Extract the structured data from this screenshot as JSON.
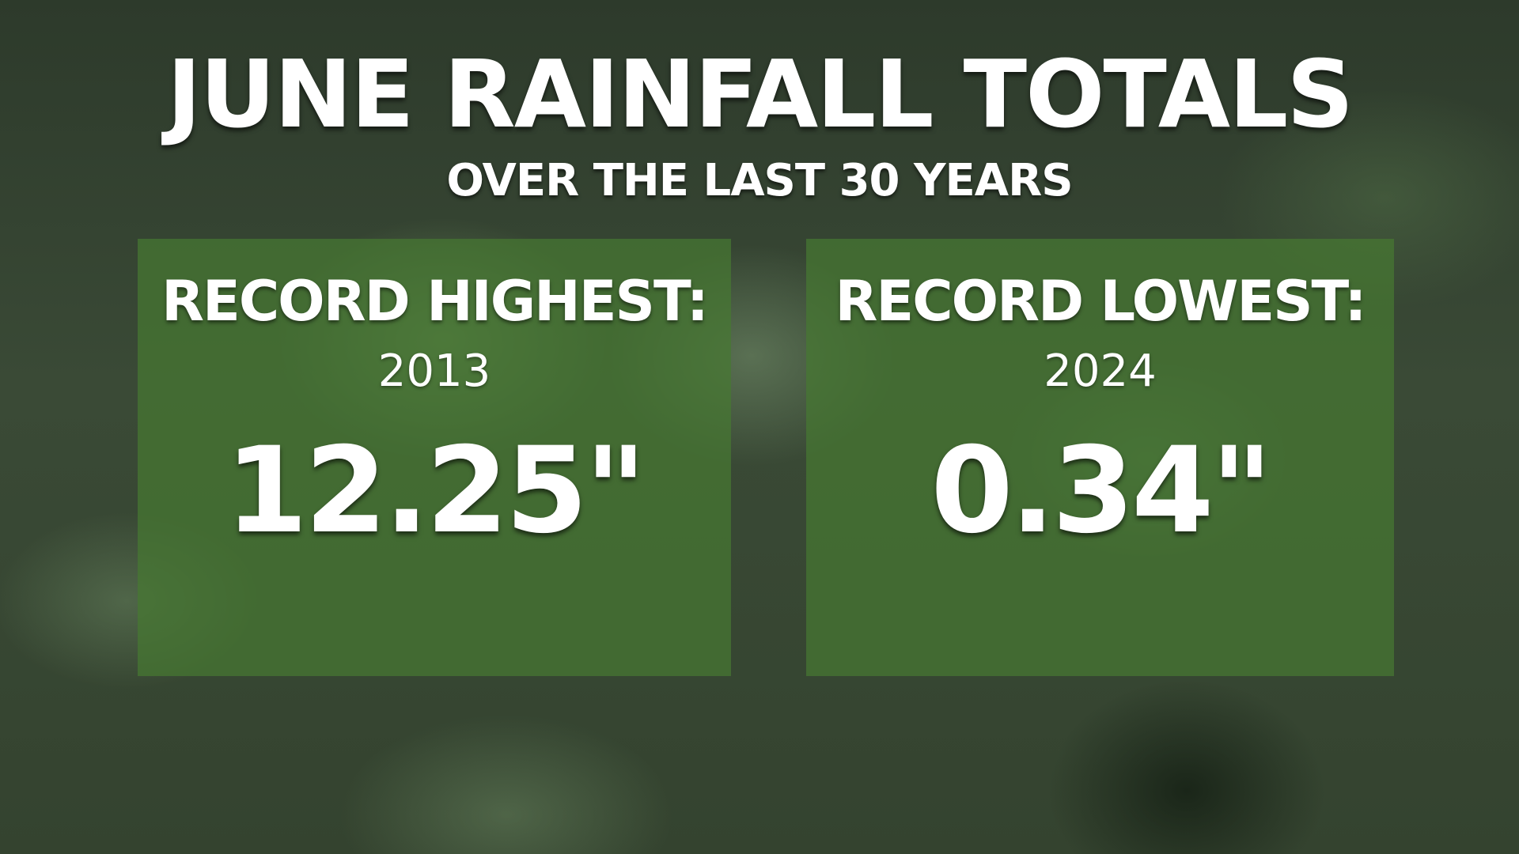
{
  "header": {
    "title": "JUNE RAINFALL TOTALS",
    "subtitle": "OVER THE LAST 30 YEARS"
  },
  "cards": [
    {
      "label": "RECORD HIGHEST:",
      "year": "2013",
      "value": "12.25\""
    },
    {
      "label": "RECORD LOWEST:",
      "year": "2024",
      "value": "0.34\""
    }
  ]
}
